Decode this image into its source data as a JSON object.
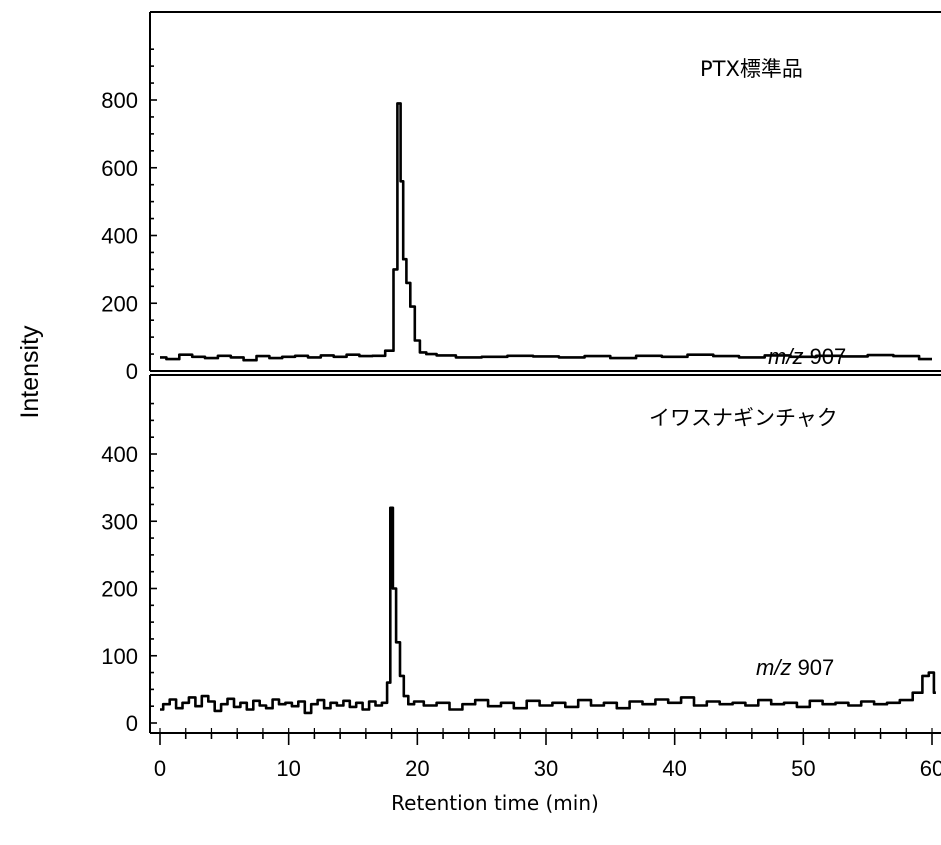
{
  "chart_data": [
    {
      "type": "line",
      "title": "PTX標準品",
      "annotation": "m/z 907",
      "annotation_italic": "m/z",
      "annotation_rest": " 907",
      "xlim": [
        0,
        61
      ],
      "ylim": [
        0,
        1000
      ],
      "yticks": [
        0,
        200,
        400,
        600,
        800
      ],
      "series": [
        {
          "name": "",
          "x": [
            0,
            1,
            2,
            3,
            4,
            5,
            6,
            7,
            8,
            9,
            10,
            11,
            12,
            13,
            14,
            15,
            16,
            17,
            18,
            18.3,
            18.6,
            18.8,
            19.0,
            19.3,
            19.6,
            20.0,
            20.4,
            21,
            22,
            24,
            26,
            28,
            30,
            32,
            34,
            36,
            38,
            40,
            42,
            44,
            46,
            48,
            50,
            52,
            54,
            56,
            58,
            60
          ],
          "y": [
            40,
            35,
            48,
            42,
            38,
            45,
            40,
            32,
            44,
            38,
            42,
            45,
            40,
            46,
            42,
            48,
            44,
            45,
            60,
            300,
            790,
            560,
            330,
            260,
            190,
            90,
            55,
            50,
            46,
            40,
            42,
            45,
            43,
            40,
            44,
            38,
            45,
            42,
            48,
            44,
            40,
            46,
            42,
            45,
            43,
            47,
            44,
            35
          ]
        }
      ]
    },
    {
      "type": "line",
      "title": "イワスナギンチャク",
      "annotation": "m/z 907",
      "annotation_italic": "m/z",
      "annotation_rest": " 907",
      "xlim": [
        0,
        61
      ],
      "ylim": [
        0,
        500
      ],
      "yticks": [
        0,
        100,
        200,
        300,
        400
      ],
      "xticks": [
        0,
        10,
        20,
        30,
        40,
        50,
        60
      ],
      "xlabel": "Retention time (min)",
      "series": [
        {
          "name": "",
          "x": [
            0,
            0.5,
            1,
            1.5,
            2,
            2.5,
            3,
            3.5,
            4,
            4.5,
            5,
            5.5,
            6,
            6.5,
            7,
            7.5,
            8,
            8.5,
            9,
            9.5,
            10,
            10.5,
            11,
            11.5,
            12,
            12.5,
            13,
            13.5,
            14,
            14.5,
            15,
            15.5,
            16,
            16.5,
            17,
            17.5,
            17.8,
            18.0,
            18.2,
            18.5,
            18.8,
            19.1,
            19.5,
            20,
            21,
            22,
            23,
            24,
            25,
            26,
            27,
            28,
            29,
            30,
            31,
            32,
            33,
            34,
            35,
            36,
            37,
            38,
            39,
            40,
            41,
            42,
            43,
            44,
            45,
            46,
            47,
            48,
            49,
            50,
            51,
            52,
            53,
            54,
            55,
            56,
            57,
            58,
            59,
            59.5,
            60,
            60.3
          ],
          "y": [
            20,
            28,
            35,
            22,
            30,
            38,
            25,
            40,
            32,
            18,
            28,
            36,
            24,
            30,
            20,
            33,
            26,
            22,
            35,
            28,
            30,
            25,
            32,
            15,
            28,
            34,
            22,
            30,
            26,
            33,
            24,
            30,
            20,
            32,
            26,
            30,
            60,
            320,
            200,
            120,
            70,
            40,
            28,
            32,
            26,
            30,
            20,
            28,
            34,
            25,
            30,
            22,
            33,
            26,
            30,
            24,
            34,
            26,
            30,
            22,
            32,
            28,
            35,
            30,
            38,
            26,
            32,
            28,
            30,
            26,
            34,
            28,
            30,
            24,
            33,
            28,
            30,
            26,
            32,
            28,
            30,
            34,
            45,
            70,
            75,
            45
          ]
        }
      ]
    }
  ],
  "ylabel": "Intensity"
}
